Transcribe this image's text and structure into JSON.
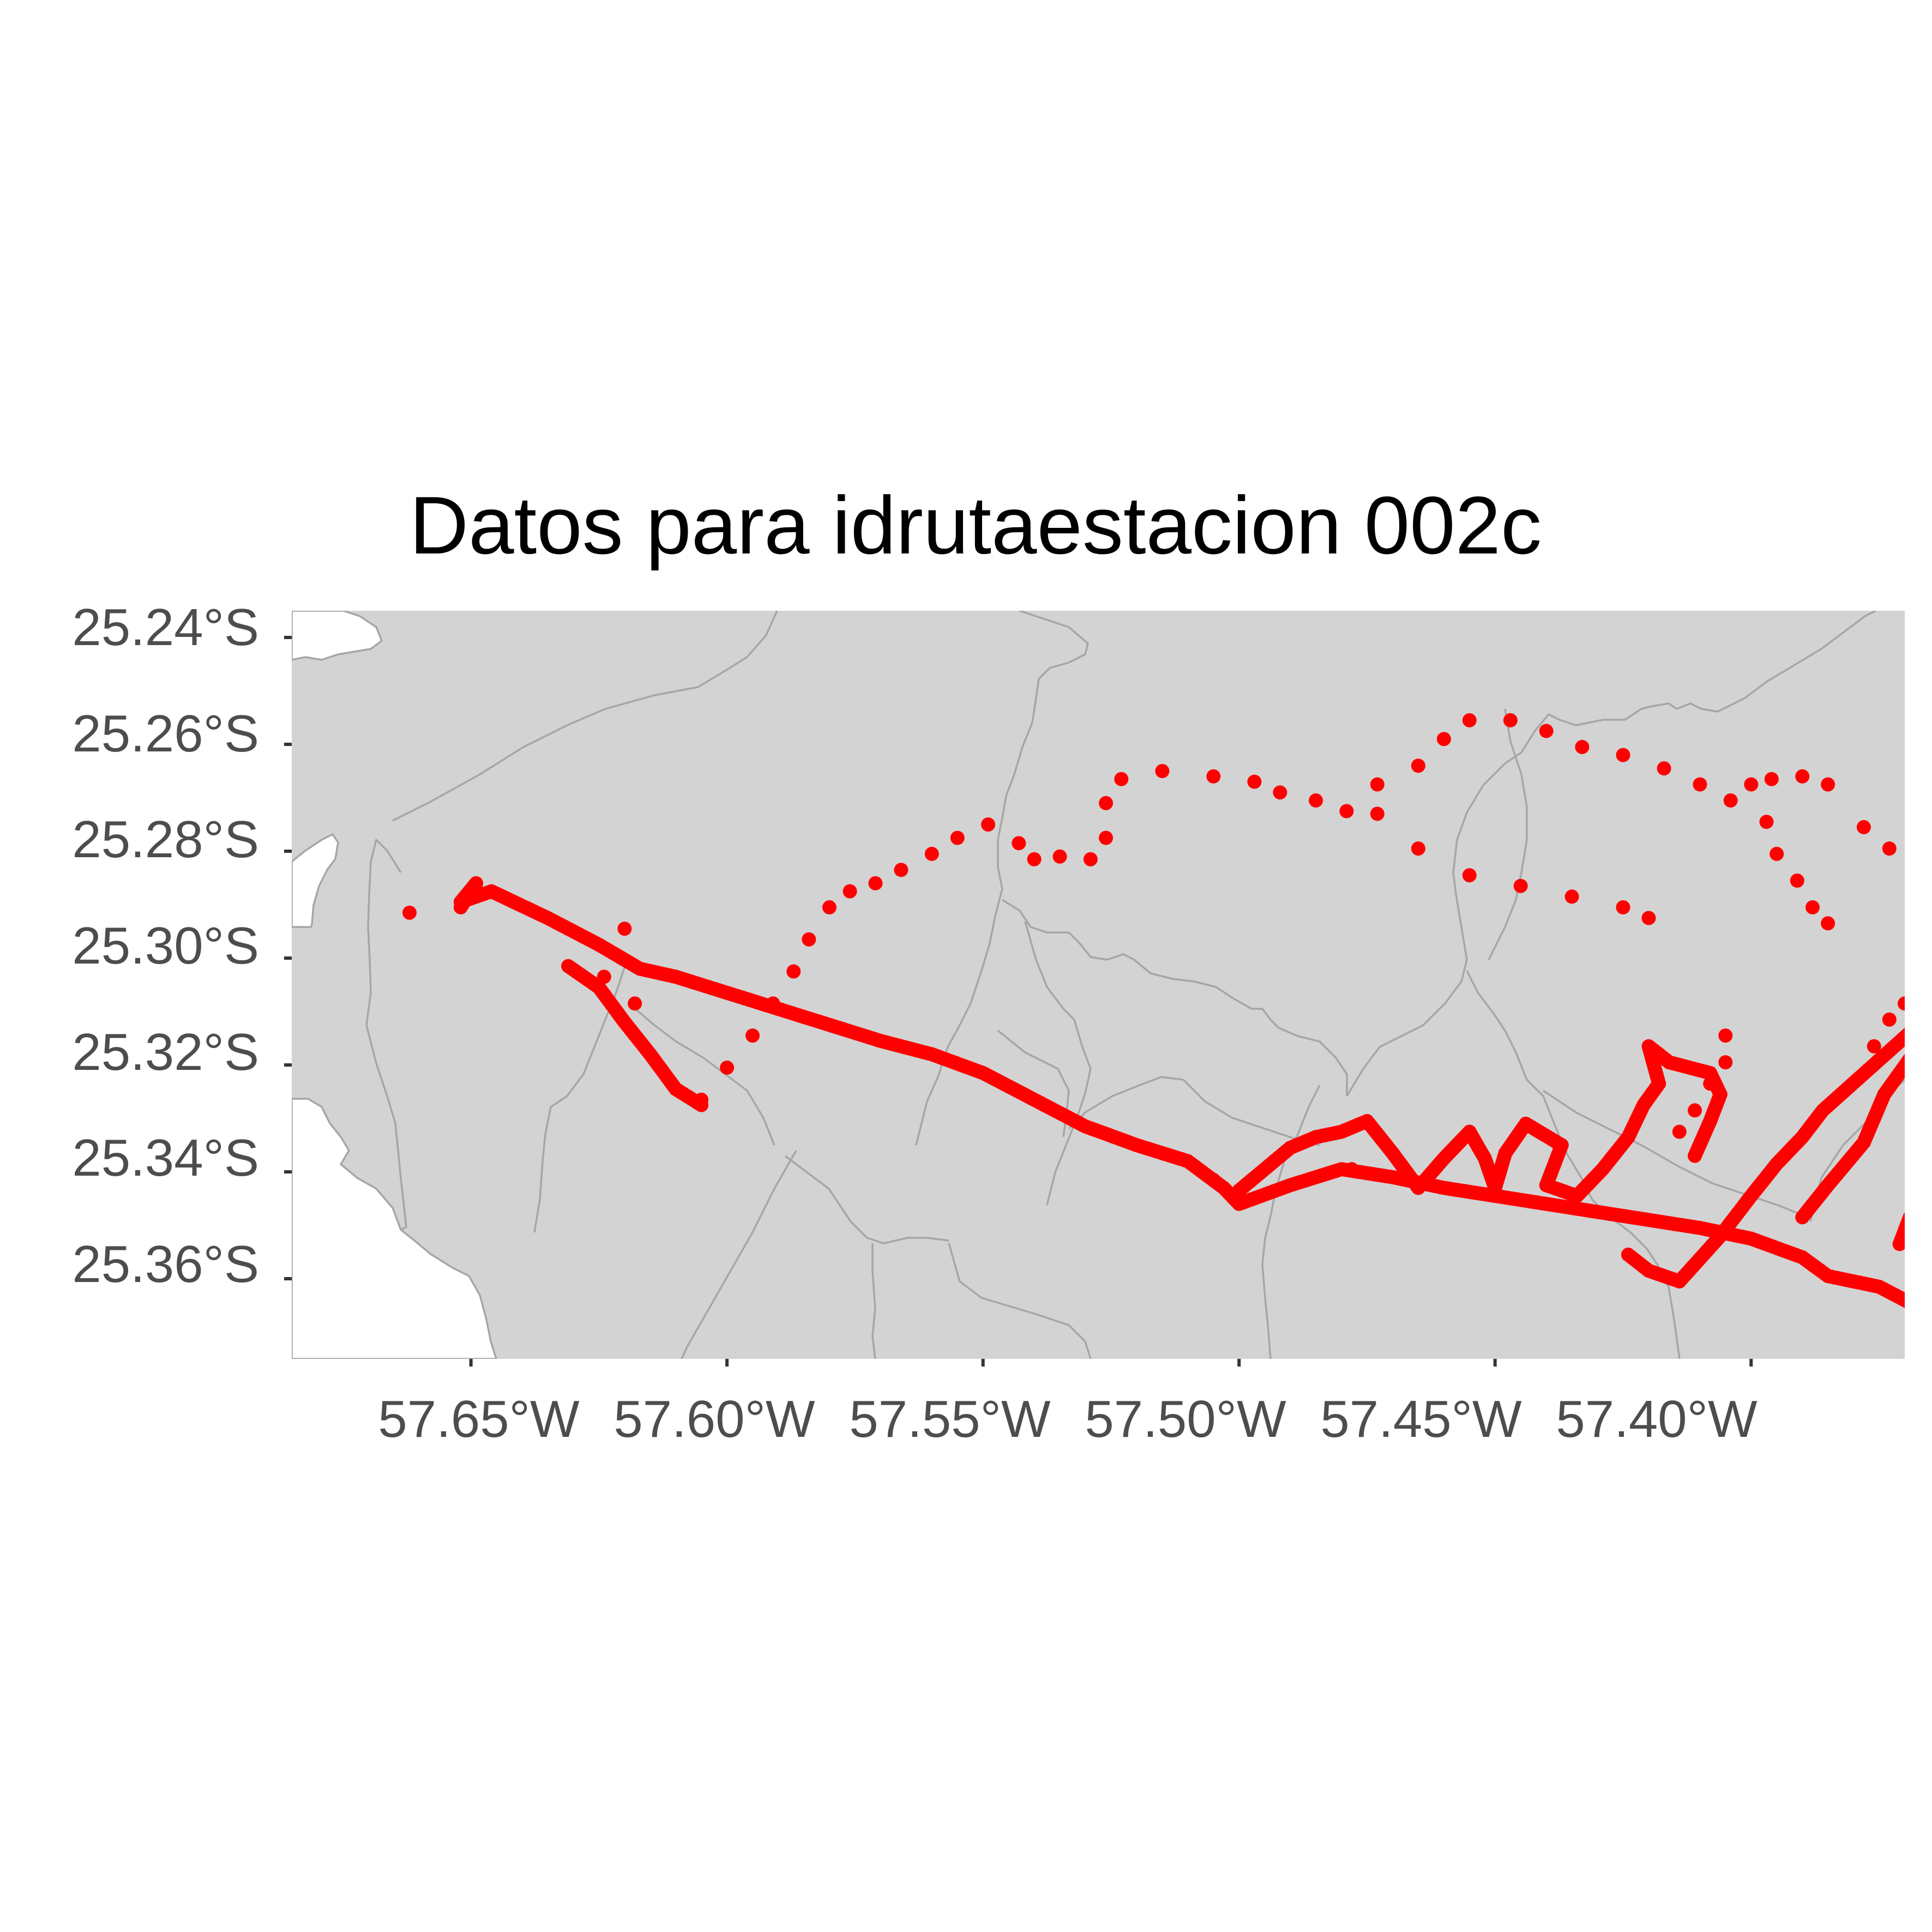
{
  "title": "Datos para idrutaestacion 002c",
  "colors": {
    "points": "#ff0000",
    "land": "#d3d3d3",
    "boundaries": "#a6a6a6",
    "background": "#ffffff",
    "tick_text": "#4d4d4d",
    "title_text": "#000000"
  },
  "chart_data": {
    "type": "scatter",
    "title": "Datos para idrutaestacion 002c",
    "xlabel": "",
    "ylabel": "",
    "xlim": [
      -57.685,
      -57.37
    ],
    "ylim": [
      -25.375,
      -25.235
    ],
    "x_ticks": [
      -57.65,
      -57.6,
      -57.55,
      -57.5,
      -57.45,
      -57.4
    ],
    "x_tick_labels": [
      "57.65°W",
      "57.60°W",
      "57.55°W",
      "57.50°W",
      "57.45°W",
      "57.40°W"
    ],
    "y_ticks": [
      -25.24,
      -25.26,
      -25.28,
      -25.3,
      -25.32,
      -25.34,
      -25.36
    ],
    "y_tick_labels": [
      "25.24°S",
      "25.26°S",
      "25.28°S",
      "25.30°S",
      "25.32°S",
      "25.34°S",
      "25.36°S"
    ],
    "grid": true,
    "legend": "none",
    "point_color": "#ff0000",
    "basemap": "administrative boundaries (grey)",
    "tracks": [
      {
        "kind": "dense",
        "points": [
          [
            -57.652,
            -25.2905
          ],
          [
            -57.649,
            -25.286
          ],
          [
            -57.652,
            -25.2895
          ],
          [
            -57.646,
            -25.2875
          ],
          [
            -57.635,
            -25.2925
          ],
          [
            -57.625,
            -25.2975
          ],
          [
            -57.617,
            -25.302
          ],
          [
            -57.61,
            -25.3035
          ],
          [
            -57.6,
            -25.3065
          ],
          [
            -57.59,
            -25.3095
          ],
          [
            -57.58,
            -25.3125
          ],
          [
            -57.57,
            -25.3155
          ],
          [
            -57.56,
            -25.318
          ],
          [
            -57.55,
            -25.3215
          ],
          [
            -57.54,
            -25.3265
          ],
          [
            -57.53,
            -25.3315
          ],
          [
            -57.52,
            -25.335
          ],
          [
            -57.51,
            -25.338
          ],
          [
            -57.503,
            -25.343
          ],
          [
            -57.5,
            -25.346
          ],
          [
            -57.49,
            -25.3425
          ],
          [
            -57.48,
            -25.3395
          ],
          [
            -57.47,
            -25.341
          ],
          [
            -57.46,
            -25.343
          ],
          [
            -57.45,
            -25.3445
          ],
          [
            -57.44,
            -25.346
          ],
          [
            -57.43,
            -25.3475
          ],
          [
            -57.42,
            -25.349
          ],
          [
            -57.41,
            -25.3505
          ],
          [
            -57.4,
            -25.3525
          ],
          [
            -57.39,
            -25.356
          ],
          [
            -57.385,
            -25.3595
          ],
          [
            -57.375,
            -25.3615
          ],
          [
            -57.369,
            -25.3645
          ]
        ]
      },
      {
        "kind": "dense",
        "points": [
          [
            -57.631,
            -25.3015
          ],
          [
            -57.625,
            -25.3055
          ],
          [
            -57.62,
            -25.312
          ],
          [
            -57.615,
            -25.318
          ],
          [
            -57.61,
            -25.3245
          ],
          [
            -57.605,
            -25.3275
          ]
        ]
      },
      {
        "kind": "sparse",
        "points": [
          [
            -57.605,
            -25.3265
          ],
          [
            -57.6,
            -25.3205
          ],
          [
            -57.595,
            -25.3145
          ],
          [
            -57.591,
            -25.3085
          ],
          [
            -57.587,
            -25.3025
          ],
          [
            -57.584,
            -25.2965
          ],
          [
            -57.58,
            -25.2905
          ],
          [
            -57.576,
            -25.2875
          ],
          [
            -57.571,
            -25.286
          ],
          [
            -57.566,
            -25.2835
          ],
          [
            -57.56,
            -25.2805
          ],
          [
            -57.555,
            -25.2775
          ],
          [
            -57.549,
            -25.275
          ],
          [
            -57.543,
            -25.2785
          ],
          [
            -57.54,
            -25.2815
          ],
          [
            -57.535,
            -25.281
          ],
          [
            -57.529,
            -25.2815
          ],
          [
            -57.526,
            -25.2775
          ],
          [
            -57.526,
            -25.271
          ],
          [
            -57.523,
            -25.2665
          ],
          [
            -57.515,
            -25.265
          ],
          [
            -57.505,
            -25.266
          ],
          [
            -57.497,
            -25.267
          ],
          [
            -57.492,
            -25.269
          ],
          [
            -57.485,
            -25.2705
          ],
          [
            -57.479,
            -25.2725
          ],
          [
            -57.473,
            -25.273
          ],
          [
            -57.473,
            -25.2675
          ],
          [
            -57.465,
            -25.264
          ],
          [
            -57.46,
            -25.259
          ],
          [
            -57.455,
            -25.2555
          ],
          [
            -57.447,
            -25.2555
          ],
          [
            -57.44,
            -25.2575
          ],
          [
            -57.433,
            -25.2605
          ],
          [
            -57.425,
            -25.262
          ],
          [
            -57.417,
            -25.2645
          ],
          [
            -57.41,
            -25.2675
          ],
          [
            -57.404,
            -25.2705
          ],
          [
            -57.396,
            -25.2665
          ],
          [
            -57.39,
            -25.266
          ],
          [
            -57.385,
            -25.2675
          ],
          [
            -57.378,
            -25.2755
          ],
          [
            -57.373,
            -25.2795
          ],
          [
            -57.368,
            -25.2845
          ],
          [
            -57.365,
            -25.2885
          ]
        ]
      },
      {
        "kind": "sparse",
        "points": [
          [
            -57.4,
            -25.2675
          ],
          [
            -57.397,
            -25.2745
          ],
          [
            -57.395,
            -25.2805
          ],
          [
            -57.391,
            -25.2855
          ],
          [
            -57.388,
            -25.2905
          ],
          [
            -57.385,
            -25.2935
          ]
        ]
      },
      {
        "kind": "sparse",
        "points": [
          [
            -57.465,
            -25.2795
          ],
          [
            -57.455,
            -25.2845
          ],
          [
            -57.445,
            -25.2865
          ],
          [
            -57.435,
            -25.2885
          ],
          [
            -57.425,
            -25.2905
          ],
          [
            -57.42,
            -25.2925
          ]
        ]
      },
      {
        "kind": "dense",
        "points": [
          [
            -57.411,
            -25.337
          ],
          [
            -57.408,
            -25.3305
          ],
          [
            -57.406,
            -25.3255
          ],
          [
            -57.408,
            -25.3215
          ],
          [
            -57.416,
            -25.3195
          ],
          [
            -57.42,
            -25.3165
          ],
          [
            -57.418,
            -25.3235
          ],
          [
            -57.421,
            -25.3275
          ],
          [
            -57.424,
            -25.3335
          ],
          [
            -57.429,
            -25.3395
          ],
          [
            -57.434,
            -25.3445
          ],
          [
            -57.44,
            -25.3425
          ],
          [
            -57.437,
            -25.335
          ],
          [
            -57.444,
            -25.331
          ],
          [
            -57.448,
            -25.3365
          ],
          [
            -57.45,
            -25.343
          ],
          [
            -57.452,
            -25.3375
          ],
          [
            -57.455,
            -25.3325
          ],
          [
            -57.46,
            -25.3375
          ],
          [
            -57.465,
            -25.343
          ],
          [
            -57.47,
            -25.3365
          ],
          [
            -57.475,
            -25.3305
          ],
          [
            -57.48,
            -25.3325
          ],
          [
            -57.485,
            -25.3335
          ],
          [
            -57.49,
            -25.3355
          ],
          [
            -57.495,
            -25.3395
          ],
          [
            -57.5,
            -25.3435
          ]
        ]
      },
      {
        "kind": "dense",
        "points": [
          [
            -57.424,
            -25.3555
          ],
          [
            -57.42,
            -25.3585
          ],
          [
            -57.414,
            -25.3605
          ],
          [
            -57.406,
            -25.352
          ],
          [
            -57.4,
            -25.3445
          ],
          [
            -57.395,
            -25.3385
          ],
          [
            -57.39,
            -25.3335
          ],
          [
            -57.386,
            -25.3285
          ],
          [
            -57.379,
            -25.3225
          ],
          [
            -57.372,
            -25.3165
          ],
          [
            -57.365,
            -25.3105
          ],
          [
            -57.36,
            -25.3055
          ],
          [
            -57.355,
            -25.3055
          ],
          [
            -57.349,
            -25.3075
          ],
          [
            -57.343,
            -25.3135
          ],
          [
            -57.35,
            -25.3195
          ],
          [
            -57.355,
            -25.3265
          ],
          [
            -57.36,
            -25.3335
          ],
          [
            -57.364,
            -25.3415
          ],
          [
            -57.369,
            -25.3485
          ],
          [
            -57.371,
            -25.3535
          ],
          [
            -57.366,
            -25.3465
          ],
          [
            -57.362,
            -25.3395
          ],
          [
            -57.357,
            -25.3325
          ],
          [
            -57.353,
            -25.3255
          ],
          [
            -57.348,
            -25.3185
          ],
          [
            -57.344,
            -25.3135
          ]
        ]
      },
      {
        "kind": "dense",
        "points": [
          [
            -57.39,
            -25.3485
          ],
          [
            -57.385,
            -25.3425
          ],
          [
            -57.378,
            -25.3345
          ],
          [
            -57.374,
            -25.3255
          ],
          [
            -57.368,
            -25.3175
          ],
          [
            -57.362,
            -25.3105
          ],
          [
            -57.356,
            -25.3055
          ],
          [
            -57.345,
            -25.3135
          ]
        ]
      },
      {
        "kind": "dense",
        "points": [
          [
            -57.365,
            -25.3205
          ],
          [
            -57.358,
            -25.3285
          ],
          [
            -57.351,
            -25.3355
          ],
          [
            -57.347,
            -25.3405
          ],
          [
            -57.345,
            -25.3355
          ],
          [
            -57.342,
            -25.3295
          ]
        ]
      },
      {
        "kind": "sparse",
        "points": [
          [
            -57.376,
            -25.3165
          ],
          [
            -57.373,
            -25.3115
          ],
          [
            -57.37,
            -25.3085
          ],
          [
            -57.363,
            -25.3055
          ],
          [
            -57.352,
            -25.3065
          ],
          [
            -57.345,
            -25.3145
          ]
        ]
      },
      {
        "kind": "sparse",
        "points": [
          [
            -57.414,
            -25.3325
          ],
          [
            -57.411,
            -25.3285
          ],
          [
            -57.408,
            -25.3235
          ],
          [
            -57.405,
            -25.3195
          ],
          [
            -57.405,
            -25.3145
          ]
        ]
      },
      {
        "kind": "outlier",
        "points": [
          [
            -57.662,
            -25.2915
          ],
          [
            -57.62,
            -25.2945
          ],
          [
            -57.624,
            -25.3035
          ],
          [
            -57.618,
            -25.3085
          ],
          [
            -57.505,
            -25.3415
          ],
          [
            -57.478,
            -25.3395
          ],
          [
            -57.363,
            -25.3325
          ]
        ]
      }
    ]
  }
}
